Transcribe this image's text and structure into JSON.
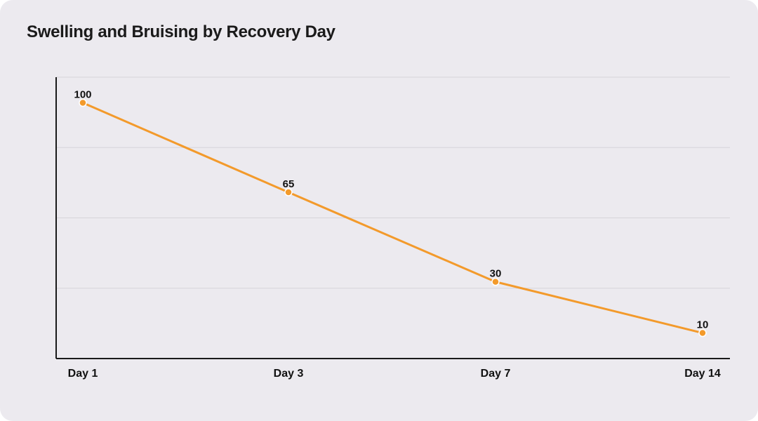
{
  "chart_data": {
    "type": "line",
    "title": "Swelling and Bruising by Recovery Day",
    "xlabel": "",
    "ylabel": "",
    "categories": [
      "Day 1",
      "Day 3",
      "Day 7",
      "Day 14"
    ],
    "series": [
      {
        "values": [
          100,
          65,
          30,
          10
        ],
        "color": "#f39a2b"
      }
    ],
    "ylim": [
      0,
      110
    ],
    "grid": true,
    "legend": "none",
    "data_labels": true
  }
}
